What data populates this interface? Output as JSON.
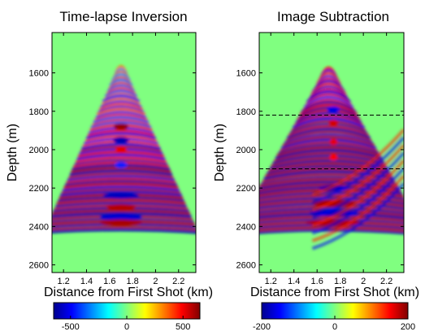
{
  "chart_data": [
    {
      "type": "heatmap",
      "title": "Time-lapse Inversion",
      "xlabel": "Distance from First Shot (km)",
      "ylabel": "Depth (m)",
      "xlim": [
        1.1,
        2.35
      ],
      "ylim": [
        2640,
        1390
      ],
      "y_inverted": true,
      "x_ticks": [
        "1.2",
        "1.4",
        "1.6",
        "1.8",
        "2",
        "2.2"
      ],
      "y_ticks": [
        "1600",
        "1800",
        "2000",
        "2200",
        "2400",
        "2600"
      ],
      "colorbar": {
        "colormap": "jet",
        "range": [
          -650,
          650
        ],
        "ticks": [
          "-500",
          "0",
          "500"
        ]
      },
      "dashed_lines_depth": []
    },
    {
      "type": "heatmap",
      "title": "Image Subtraction",
      "xlabel": "Distance from First Shot (km)",
      "ylabel": "Depth (m)",
      "xlim": [
        1.1,
        2.35
      ],
      "ylim": [
        2640,
        1390
      ],
      "y_inverted": true,
      "x_ticks": [
        "1.2",
        "1.4",
        "1.6",
        "1.8",
        "2",
        "2.2"
      ],
      "y_ticks": [
        "1600",
        "1800",
        "2000",
        "2200",
        "2400",
        "2600"
      ],
      "colorbar": {
        "colormap": "jet",
        "range": [
          -200,
          200
        ],
        "ticks": [
          "-200",
          "0",
          "200"
        ]
      },
      "dashed_lines_depth": [
        1820,
        2100
      ]
    }
  ]
}
